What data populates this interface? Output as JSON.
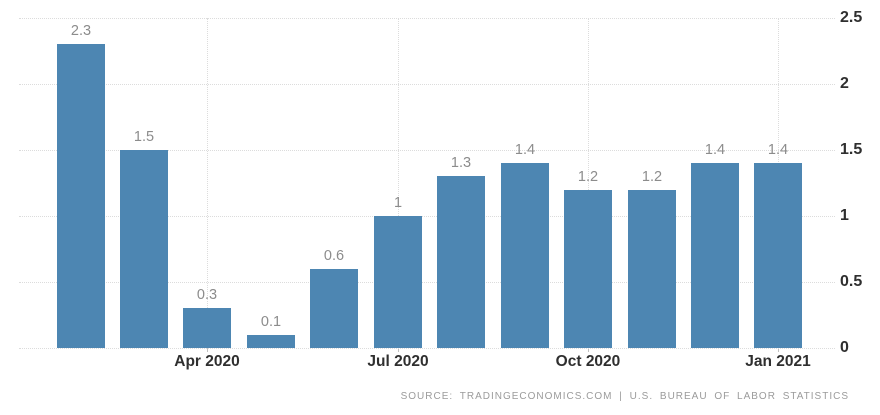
{
  "chart_data": {
    "type": "bar",
    "title": "",
    "xlabel": "",
    "ylabel": "",
    "values": [
      2.3,
      1.5,
      0.3,
      0.1,
      0.6,
      1,
      1.3,
      1.4,
      1.2,
      1.2,
      1.4,
      1.4
    ],
    "bar_labels": [
      "2.3",
      "1.5",
      "0.3",
      "0.1",
      "0.6",
      "1",
      "1.3",
      "1.4",
      "1.2",
      "1.2",
      "1.4",
      "1.4"
    ],
    "x_ticks": [
      {
        "label": "Apr 2020",
        "bar_index": 2
      },
      {
        "label": "Jul 2020",
        "bar_index": 5
      },
      {
        "label": "Oct 2020",
        "bar_index": 8
      },
      {
        "label": "Jan 2021",
        "bar_index": 11
      }
    ],
    "y_ticks": [
      {
        "label": "2.5",
        "value": 2.5
      },
      {
        "label": "2",
        "value": 2
      },
      {
        "label": "1.5",
        "value": 1.5
      },
      {
        "label": "1",
        "value": 1
      },
      {
        "label": "0.5",
        "value": 0.5
      },
      {
        "label": "0",
        "value": 0
      }
    ],
    "ylim": [
      0,
      2.5
    ],
    "grid": "dotted",
    "legend": "none",
    "y_axis_position": "right",
    "colors": {
      "bar": "#4d86b2",
      "grid": "#dcdcdc",
      "axis_text": "#2f2f2f",
      "value_label": "#8c8c8c",
      "source_text": "#9b9b9b"
    }
  },
  "source": {
    "text": "SOURCE: TRADINGECONOMICS.COM | U.S. BUREAU OF LABOR STATISTICS"
  }
}
